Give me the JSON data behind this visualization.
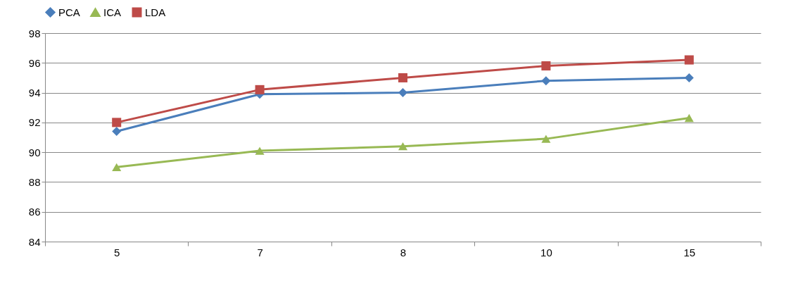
{
  "chart_data": {
    "type": "line",
    "categories": [
      "5",
      "7",
      "8",
      "10",
      "15"
    ],
    "series": [
      {
        "name": "PCA",
        "color": "#4a7ebb",
        "marker": "diamond",
        "values": [
          91.4,
          93.9,
          94.0,
          94.8,
          95.0
        ]
      },
      {
        "name": "ICA",
        "color": "#98b954",
        "marker": "triangle",
        "values": [
          89.0,
          90.1,
          90.4,
          90.9,
          92.3
        ]
      },
      {
        "name": "LDA",
        "color": "#be4b48",
        "marker": "square",
        "values": [
          92.0,
          94.2,
          95.0,
          95.8,
          96.2
        ]
      }
    ],
    "ylim": [
      84,
      98
    ],
    "yticks": [
      84,
      86,
      88,
      90,
      92,
      94,
      96,
      98
    ],
    "grid": "y",
    "legend": "top"
  }
}
